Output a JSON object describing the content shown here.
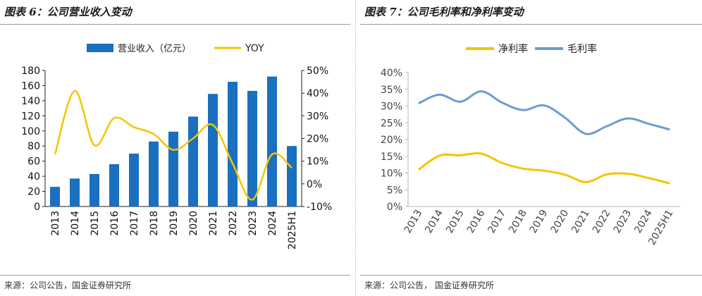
{
  "chart_data": [
    {
      "type": "bar",
      "title": "图表 6：公司营业收入变动",
      "source": "来源：公司公告，国金证券研究所",
      "categories": [
        "2013",
        "2014",
        "2015",
        "2016",
        "2017",
        "2018",
        "2019",
        "2020",
        "2021",
        "2022",
        "2023",
        "2024",
        "2025H1"
      ],
      "series": [
        {
          "name": "营业收入（亿元）",
          "type": "bar",
          "axis": "left",
          "color": "#1a6fbf",
          "values": [
            26,
            37,
            43,
            56,
            70,
            86,
            99,
            119,
            149,
            165,
            153,
            172,
            80
          ]
        },
        {
          "name": "YOY",
          "type": "line",
          "axis": "right",
          "color": "#f5c400",
          "values": [
            13,
            41,
            17,
            29,
            25,
            22,
            15,
            20,
            26,
            9,
            -7,
            13,
            7
          ]
        }
      ],
      "y_left": {
        "min": 0,
        "max": 180,
        "ticks": [
          "0",
          "20",
          "40",
          "60",
          "80",
          "100",
          "120",
          "140",
          "160",
          "180"
        ]
      },
      "y_right": {
        "min": -10,
        "max": 50,
        "ticks": [
          "-10%",
          "0%",
          "10%",
          "20%",
          "30%",
          "40%",
          "50%"
        ]
      },
      "legend_position": "top"
    },
    {
      "type": "line",
      "title": "图表 7：公司毛利率和净利率变动",
      "source": "来源：公司公告，  国金证券研究所",
      "categories": [
        "2013",
        "2014",
        "2015",
        "2016",
        "2017",
        "2018",
        "2019",
        "2020",
        "2021",
        "2022",
        "2023",
        "2024",
        "2025H1"
      ],
      "series": [
        {
          "name": "净利率",
          "color": "#f5c400",
          "values": [
            11,
            15.2,
            15.3,
            15.8,
            13,
            11.3,
            10.7,
            9.5,
            7.3,
            9.6,
            9.8,
            8.5,
            6.9
          ]
        },
        {
          "name": "毛利率",
          "color": "#6d9bd1",
          "values": [
            30.8,
            33.4,
            31.3,
            34.4,
            31,
            28.8,
            30.2,
            26.5,
            21.7,
            24,
            26.3,
            24.7,
            23
          ]
        }
      ],
      "y": {
        "min": 0,
        "max": 40,
        "ticks": [
          "0%",
          "5%",
          "10%",
          "15%",
          "20%",
          "25%",
          "30%",
          "35%",
          "40%"
        ]
      },
      "legend_position": "top"
    }
  ]
}
